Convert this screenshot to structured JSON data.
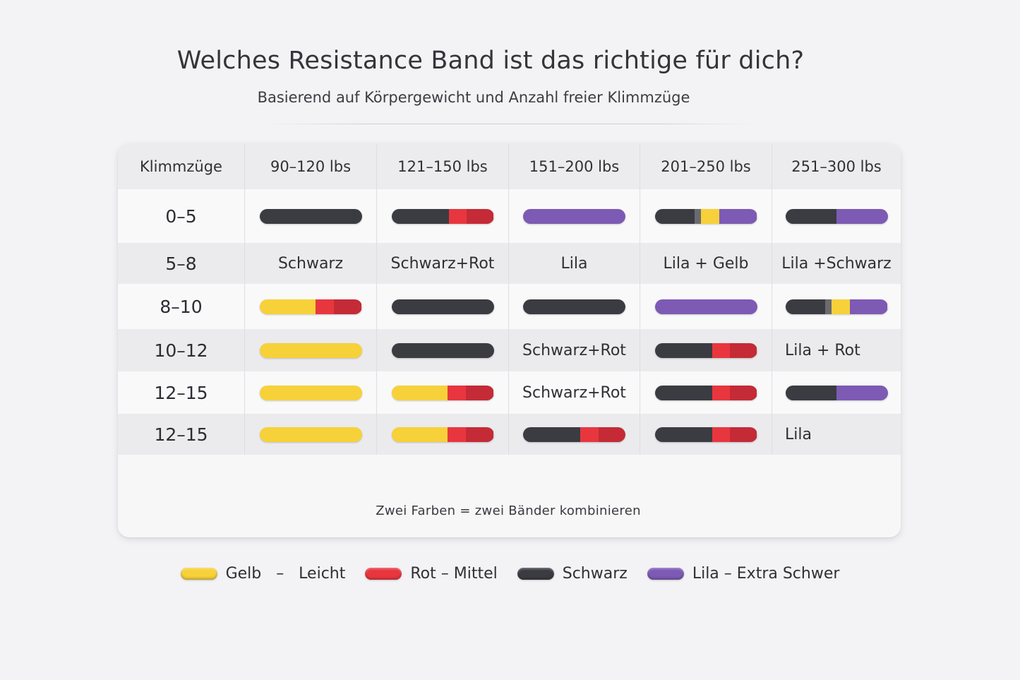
{
  "title": "Welches Resistance Band ist das richtige für dich?",
  "subtitle": "Basierend auf Körpergewicht und Anzahl freier Klimmzüge",
  "colors": {
    "black": "#3b3b42",
    "red": "#e8363f",
    "yellow": "#f7d13a",
    "purple": "#7d5ab4"
  },
  "table": {
    "headers": [
      "Klimmzüge",
      "90–120 lbs",
      "121–150 lbs",
      "151–200 lbs",
      "201–250 lbs",
      "251–300 lbs"
    ],
    "rows": [
      {
        "label": "0–5",
        "cells": [
          {
            "type": "band",
            "colors": [
              "black"
            ]
          },
          {
            "type": "band",
            "colors": [
              "black",
              "red"
            ]
          },
          {
            "type": "band",
            "colors": [
              "purple"
            ]
          },
          {
            "type": "band",
            "colors": [
              "black",
              "yellow",
              "purple"
            ]
          },
          {
            "type": "band",
            "colors": [
              "black",
              "purple"
            ]
          }
        ]
      },
      {
        "label": "5–8",
        "cells": [
          {
            "type": "text",
            "text": "Schwarz"
          },
          {
            "type": "text",
            "text": "Schwarz+Rot"
          },
          {
            "type": "text",
            "text": "Lila"
          },
          {
            "type": "text",
            "text": "Lila + Gelb"
          },
          {
            "type": "text",
            "text": "Lila +Schwarz"
          }
        ]
      },
      {
        "label": "8–10",
        "cells": [
          {
            "type": "band",
            "colors": [
              "yellow",
              "red"
            ]
          },
          {
            "type": "band",
            "colors": [
              "black"
            ]
          },
          {
            "type": "band",
            "colors": [
              "black"
            ]
          },
          {
            "type": "band",
            "colors": [
              "purple"
            ]
          },
          {
            "type": "band",
            "colors": [
              "black",
              "yellow",
              "purple"
            ]
          }
        ]
      },
      {
        "label": "10–12",
        "cells": [
          {
            "type": "band",
            "colors": [
              "yellow"
            ]
          },
          {
            "type": "band",
            "colors": [
              "black"
            ]
          },
          {
            "type": "text",
            "text": "Schwarz+Rot"
          },
          {
            "type": "band",
            "colors": [
              "black",
              "red"
            ]
          },
          {
            "type": "text",
            "text": "Lila + Rot"
          }
        ]
      },
      {
        "label": "12–15",
        "cells": [
          {
            "type": "band",
            "colors": [
              "yellow"
            ]
          },
          {
            "type": "band",
            "colors": [
              "yellow",
              "red"
            ]
          },
          {
            "type": "text",
            "text": "Schwarz+Rot"
          },
          {
            "type": "band",
            "colors": [
              "black",
              "red"
            ]
          },
          {
            "type": "band",
            "colors": [
              "black",
              "purple"
            ]
          }
        ]
      },
      {
        "label": "12–15",
        "cells": [
          {
            "type": "band",
            "colors": [
              "yellow"
            ]
          },
          {
            "type": "band",
            "colors": [
              "yellow",
              "red"
            ]
          },
          {
            "type": "band",
            "colors": [
              "black",
              "red"
            ]
          },
          {
            "type": "band",
            "colors": [
              "black",
              "red"
            ]
          },
          {
            "type": "text",
            "text": "Lila"
          }
        ]
      }
    ]
  },
  "legend_inner": [
    {
      "color": "yellow",
      "label": "Gelb"
    },
    {
      "color": "red",
      "label": "Rot"
    },
    {
      "color": "black",
      "label": "Schwarz"
    },
    {
      "color": "purple",
      "label": "Lila – Extra Schwer"
    }
  ],
  "note": "Zwei Farben = zwei Bänder kombinieren",
  "legend_outer": [
    {
      "color": "yellow",
      "label": "Gelb   –   Leicht"
    },
    {
      "color": "red",
      "label": "Rot – Mittel"
    },
    {
      "color": "black",
      "label": "Schwarz"
    },
    {
      "color": "purple",
      "label": "Lila – Extra Schwer"
    }
  ]
}
